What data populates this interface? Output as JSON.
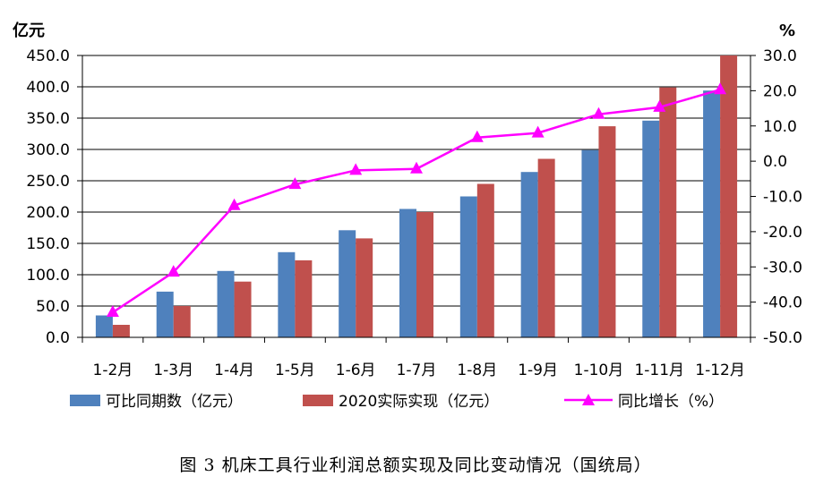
{
  "chart_data": {
    "type": "bar",
    "caption": "图 3 机床工具行业利润总额实现及同比变动情况（国统局）",
    "y_left_unit": "亿元",
    "y_right_unit": "%",
    "categories": [
      "1-2月",
      "1-3月",
      "1-4月",
      "1-5月",
      "1-6月",
      "1-7月",
      "1-8月",
      "1-9月",
      "1-10月",
      "1-11月",
      "1-12月"
    ],
    "y_left_ticks": [
      "0.0",
      "50.0",
      "100.0",
      "150.0",
      "200.0",
      "250.0",
      "300.0",
      "350.0",
      "400.0",
      "450.0"
    ],
    "y_right_ticks": [
      "-50.0",
      "-40.0",
      "-30.0",
      "-20.0",
      "-10.0",
      "0.0",
      "10.0",
      "20.0",
      "30.0"
    ],
    "ylim_left": [
      0,
      450
    ],
    "ylim_right": [
      -50,
      30
    ],
    "grid": true,
    "legend_position": "bottom",
    "series": [
      {
        "name": "可比同期数（亿元）",
        "kind": "bar",
        "axis": "left",
        "color": "#4F81BD",
        "values": [
          35,
          73,
          106,
          136,
          171,
          205,
          225,
          264,
          299,
          346,
          394
        ]
      },
      {
        "name": "2020实际实现（亿元）",
        "kind": "bar",
        "axis": "left",
        "color": "#C0504D",
        "values": [
          20,
          50,
          89,
          123,
          158,
          200,
          245,
          285,
          337,
          399,
          450
        ]
      },
      {
        "name": "同比增长（%）",
        "kind": "line",
        "axis": "right",
        "color": "#FF00FF",
        "values": [
          -42.9,
          -31.5,
          -12.6,
          -6.6,
          -2.6,
          -2.2,
          6.7,
          8.0,
          13.3,
          15.3,
          20.3
        ]
      }
    ]
  }
}
